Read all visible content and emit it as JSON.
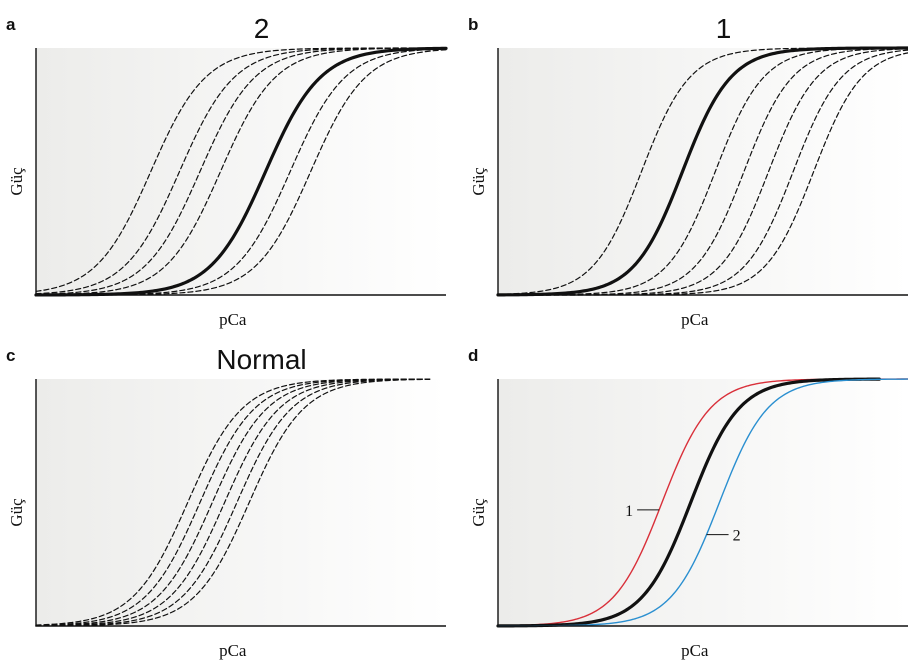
{
  "colors": {
    "background_gradient": [
      "#ececea",
      "#ffffff"
    ],
    "axis": "#111111",
    "normal_curve": "#111111",
    "curve_1": "#d9303a",
    "curve_2": "#2a8fd0"
  },
  "chart_data": [
    {
      "panel_letter": "a",
      "title": "2",
      "type": "line",
      "xlabel": "pCa",
      "ylabel": "Güç",
      "x_direction": "descending",
      "xlim": [
        0,
        1
      ],
      "ylim": [
        0,
        1
      ],
      "grid": false,
      "note": "",
      "series": [
        {
          "midpoint": 0.28,
          "style": "dashed"
        },
        {
          "midpoint": 0.35,
          "style": "dashed"
        },
        {
          "midpoint": 0.4,
          "style": "dashed"
        },
        {
          "midpoint": 0.45,
          "style": "dashed"
        },
        {
          "midpoint": 0.56,
          "style": "solid"
        },
        {
          "midpoint": 0.62,
          "style": "dashed"
        },
        {
          "midpoint": 0.67,
          "style": "dashed"
        }
      ],
      "steepness": 15
    },
    {
      "panel_letter": "b",
      "title": "1",
      "type": "line",
      "xlabel": "pCa",
      "ylabel": "Güç",
      "x_direction": "descending",
      "xlim": [
        0,
        1
      ],
      "ylim": [
        0,
        1
      ],
      "grid": false,
      "series": [
        {
          "midpoint": 0.35,
          "style": "dashed"
        },
        {
          "midpoint": 0.45,
          "style": "solid"
        },
        {
          "midpoint": 0.53,
          "style": "dashed"
        },
        {
          "midpoint": 0.6,
          "style": "dashed"
        },
        {
          "midpoint": 0.66,
          "style": "dashed"
        },
        {
          "midpoint": 0.72,
          "style": "dashed"
        },
        {
          "midpoint": 0.77,
          "style": "dashed"
        }
      ],
      "steepness": 17
    },
    {
      "panel_letter": "c",
      "title": "Normal",
      "type": "line",
      "xlabel": "pCa",
      "ylabel": "Güç",
      "x_direction": "descending",
      "xlim": [
        0,
        1
      ],
      "ylim": [
        0,
        1
      ],
      "grid": false,
      "series": [
        {
          "midpoint": 0.37,
          "style": "dashed"
        },
        {
          "midpoint": 0.4,
          "style": "dashed"
        },
        {
          "midpoint": 0.43,
          "style": "dashed"
        },
        {
          "midpoint": 0.46,
          "style": "dashed"
        },
        {
          "midpoint": 0.49,
          "style": "dashed"
        },
        {
          "midpoint": 0.52,
          "style": "dashed"
        }
      ],
      "steepness": 15,
      "x_end": 0.96
    },
    {
      "panel_letter": "d",
      "title": "",
      "type": "line",
      "xlabel": "pCa",
      "ylabel": "Güç",
      "x_direction": "descending",
      "xlim": [
        0,
        1
      ],
      "ylim": [
        0,
        1
      ],
      "grid": false,
      "series": [
        {
          "name": "1",
          "midpoint": 0.4,
          "style": "solid",
          "color": "#d9303a",
          "width": 1.4
        },
        {
          "midpoint": 0.47,
          "style": "solid",
          "color": "#111111",
          "width": 3.2,
          "x_end": 0.93
        },
        {
          "name": "2",
          "midpoint": 0.54,
          "style": "solid",
          "color": "#2a8fd0",
          "width": 1.4
        }
      ],
      "steepness": 17,
      "annotations": [
        {
          "text": "1",
          "series_index": 0
        },
        {
          "text": "2",
          "series_index": 2
        }
      ]
    }
  ]
}
